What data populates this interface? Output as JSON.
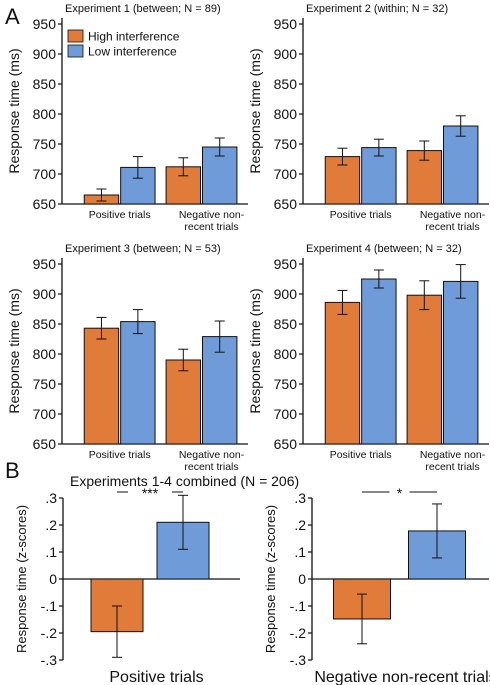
{
  "figure": {
    "panel_labels": [
      "A",
      "B"
    ],
    "legend": [
      {
        "label": "High interference",
        "color": "#e07b39"
      },
      {
        "label": "Low interference",
        "color": "#6f9bd8"
      }
    ],
    "combined_title": "Experiments 1-4 combined (N = 206)"
  },
  "chart_data": [
    {
      "type": "bar",
      "title": "Experiment 1 (between; N = 89)",
      "ylabel": "Response time (ms)",
      "ylim": [
        650,
        960
      ],
      "yticks": [
        650,
        700,
        750,
        800,
        850,
        900,
        950
      ],
      "categories": [
        "Positive trials",
        "Negative non-recent trials"
      ],
      "category_labels": [
        [
          "Positive trials"
        ],
        [
          "Negative non-",
          "recent trials"
        ]
      ],
      "series": [
        {
          "name": "High interference",
          "color": "#e07b39",
          "values": [
            665,
            712
          ],
          "errors": [
            10,
            15
          ]
        },
        {
          "name": "Low interference",
          "color": "#6f9bd8",
          "values": [
            711,
            745
          ],
          "errors": [
            18,
            15
          ]
        }
      ],
      "legend": "top-left"
    },
    {
      "type": "bar",
      "title": "Experiment 2 (within; N = 32)",
      "ylabel": "Response time (ms)",
      "ylim": [
        650,
        960
      ],
      "yticks": [
        650,
        700,
        750,
        800,
        850,
        900,
        950
      ],
      "categories": [
        "Positive trials",
        "Negative non-recent trials"
      ],
      "category_labels": [
        [
          "Positive trials"
        ],
        [
          "Negative non-",
          "recent trials"
        ]
      ],
      "series": [
        {
          "name": "High interference",
          "color": "#e07b39",
          "values": [
            729,
            739
          ],
          "errors": [
            14,
            16
          ]
        },
        {
          "name": "Low interference",
          "color": "#6f9bd8",
          "values": [
            744,
            780
          ],
          "errors": [
            14,
            17
          ]
        }
      ]
    },
    {
      "type": "bar",
      "title": "Experiment 3 (between; N = 53)",
      "ylabel": "Response time (ms)",
      "ylim": [
        650,
        960
      ],
      "yticks": [
        650,
        700,
        750,
        800,
        850,
        900,
        950
      ],
      "categories": [
        "Positive trials",
        "Negative non-recent trials"
      ],
      "category_labels": [
        [
          "Positive trials"
        ],
        [
          "Negative non-",
          "recent trials"
        ]
      ],
      "series": [
        {
          "name": "High interference",
          "color": "#e07b39",
          "values": [
            843,
            790
          ],
          "errors": [
            18,
            18
          ]
        },
        {
          "name": "Low interference",
          "color": "#6f9bd8",
          "values": [
            854,
            829
          ],
          "errors": [
            20,
            26
          ]
        }
      ]
    },
    {
      "type": "bar",
      "title": "Experiment 4 (between; N = 32)",
      "ylabel": "Response time (ms)",
      "ylim": [
        650,
        960
      ],
      "yticks": [
        650,
        700,
        750,
        800,
        850,
        900,
        950
      ],
      "categories": [
        "Positive trials",
        "Negative non-recent trials"
      ],
      "category_labels": [
        [
          "Positive trials"
        ],
        [
          "Negative non-",
          "recent trials"
        ]
      ],
      "series": [
        {
          "name": "High interference",
          "color": "#e07b39",
          "values": [
            886,
            898
          ],
          "errors": [
            20,
            24
          ]
        },
        {
          "name": "Low interference",
          "color": "#6f9bd8",
          "values": [
            925,
            921
          ],
          "errors": [
            15,
            28
          ]
        }
      ]
    },
    {
      "type": "bar",
      "title": "Positive trials",
      "ylabel": "Response time (z-scores)",
      "ylim": [
        -0.3,
        0.3
      ],
      "yticks": [
        -0.3,
        -0.2,
        -0.1,
        0,
        0.1,
        0.2,
        0.3
      ],
      "ytick_labels": [
        "-.3",
        "-.2",
        "-.1",
        "0",
        ".1",
        ".2",
        ".3"
      ],
      "categories": [
        "High interference",
        "Low interference"
      ],
      "values": [
        -0.195,
        0.21
      ],
      "errors": [
        0.095,
        0.1
      ],
      "colors": [
        "#e07b39",
        "#6f9bd8"
      ],
      "significance": "***"
    },
    {
      "type": "bar",
      "title": "Negative non-recent trials",
      "ylabel": "Response time (z-scores)",
      "ylim": [
        -0.3,
        0.3
      ],
      "yticks": [
        -0.3,
        -0.2,
        -0.1,
        0,
        0.1,
        0.2,
        0.3
      ],
      "ytick_labels": [
        "-.3",
        "-.2",
        "-.1",
        "0",
        ".1",
        ".2",
        ".3"
      ],
      "categories": [
        "High interference",
        "Low interference"
      ],
      "values": [
        -0.148,
        0.178
      ],
      "errors": [
        0.092,
        0.1
      ],
      "colors": [
        "#e07b39",
        "#6f9bd8"
      ],
      "significance": "*"
    }
  ]
}
